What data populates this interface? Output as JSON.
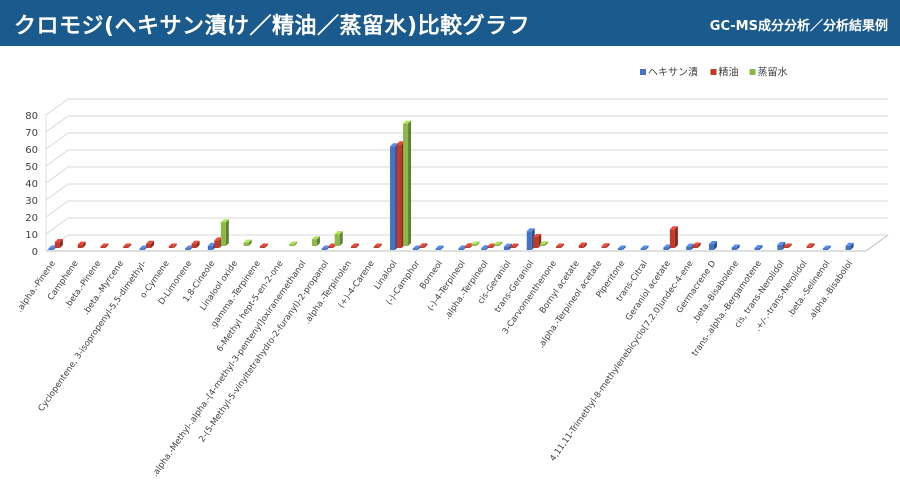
{
  "header": {
    "title": "クロモジ(ヘキサン漬け／精油／蒸留水)比較グラフ",
    "subtitle": "GC-MS成分分析／分析結果例"
  },
  "colors": {
    "header_bg": "#1b5a8c",
    "hexane": "#4472c4",
    "oil": "#c0392b",
    "water": "#8bb848"
  },
  "chart_data": {
    "type": "bar",
    "title": "",
    "xlabel": "",
    "ylabel": "",
    "ylim": [
      0,
      80
    ],
    "yticks": [
      0,
      10,
      20,
      30,
      40,
      50,
      60,
      70,
      80
    ],
    "grid": true,
    "legend_position": "top-right",
    "categories": [
      ".alpha.-Pinene",
      "Camphene",
      ".beta.-Pinene",
      ".beta.-Myrcene",
      "Cyclopentene, 3-isopropenyl-5,5-dimethyl-",
      "o-Cymene",
      "D-Limonene",
      "1,8-Cineole",
      "Linalool oxide",
      ".gamma.-Terpinene",
      "6-Methyl hept-5-en-2-one",
      ".alpha.-Methyl-.alpha.-[4-methyl-3-pentenyl]oxiranemethanol",
      "2-(5-Methyl-5-vinyltetrahydro-2-furanyl)-2-propanol",
      ".alpha.-Terpinolen",
      "(+)-4-Carene",
      "Linalool",
      "(-)-Camphor",
      "Borneol",
      "(-)-4-Terpineol",
      ".alpha.-Terpineol",
      "cis-Geraniol",
      "trans-Geraniol",
      "3-Carvomenthenone",
      "Bornyl acetate",
      ".alpha.-Terpineol acetate",
      "Piperitone",
      "trans-Citral",
      "Geraniol acetate",
      "4,11,11-Trimethyl-8-methylenebicyclo[7.2.0]undec-4-ene",
      "Germacrene D",
      ".beta.-Bisabolene",
      "trans-.alpha.-Bergamotene",
      "cis, trans-Nerolidol",
      ".+/-.-trans-Nerolidol",
      ".beta.-Selinenol",
      ".alpha.-Bisabolol"
    ],
    "series": [
      {
        "name": "ヘキサン漬",
        "color": "#4472c4",
        "values": [
          0.8,
          0,
          0,
          0,
          0.6,
          0,
          0.6,
          2.5,
          0,
          0,
          0,
          0,
          0.6,
          0,
          0,
          61,
          0.5,
          0.3,
          0.4,
          1,
          2,
          11,
          0,
          0,
          0,
          0.3,
          0.5,
          1.5,
          2,
          3.5,
          1.5,
          1.2,
          3,
          0,
          0.8,
          2.5
        ]
      },
      {
        "name": "精油",
        "color": "#c0392b",
        "values": [
          3.5,
          2,
          0.8,
          0.8,
          2.5,
          0.5,
          2.5,
          4.5,
          0,
          0.8,
          0,
          0,
          0.8,
          0.5,
          0.5,
          61,
          1,
          0,
          1,
          0.8,
          0.8,
          6.5,
          0.5,
          1.5,
          1,
          0,
          0,
          11,
          1.5,
          0,
          0,
          0,
          0.3,
          1,
          0,
          0
        ]
      },
      {
        "name": "蒸留水",
        "color": "#8bb848",
        "values": [
          0,
          0,
          0,
          0,
          0,
          0,
          0,
          14,
          2,
          0,
          0.5,
          4,
          7,
          0,
          0,
          72,
          0,
          0,
          0.8,
          0.5,
          0,
          1,
          0,
          0,
          0,
          0,
          0,
          0,
          0,
          0,
          0,
          0,
          0,
          0,
          0,
          0
        ]
      }
    ]
  }
}
